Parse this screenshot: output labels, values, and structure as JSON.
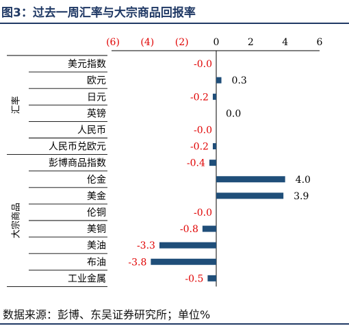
{
  "header": {
    "title": "图3：过去一周汇率与大宗商品回报率"
  },
  "footer": {
    "source": "数据来源：彭博、东吴证券研究所；单位%"
  },
  "colors": {
    "bar": "#1f4e79",
    "negative_label": "#e00000",
    "positive_label": "#000000",
    "accent": "#1f3864"
  },
  "chart_data": {
    "type": "bar",
    "orientation": "horizontal",
    "title": "",
    "xlabel": "",
    "ylabel": "",
    "xlim": [
      -6,
      6
    ],
    "xticks": [
      {
        "value": -6,
        "label": "(6)"
      },
      {
        "value": -4,
        "label": "(4)"
      },
      {
        "value": -2,
        "label": "(2)"
      },
      {
        "value": 0,
        "label": "0"
      },
      {
        "value": 2,
        "label": "2"
      },
      {
        "value": 4,
        "label": "4"
      },
      {
        "value": 6,
        "label": "6"
      }
    ],
    "groups": [
      {
        "name": "汇率",
        "count": 6
      },
      {
        "name": "大宗商品",
        "count": 8
      }
    ],
    "categories": [
      "美元指数",
      "欧元",
      "日元",
      "英镑",
      "人民币",
      "人民币兑欧元",
      "彭博商品指数",
      "伦金",
      "美金",
      "伦铜",
      "美铜",
      "美油",
      "布油",
      "工业金属"
    ],
    "values": [
      -0.0,
      0.3,
      -0.2,
      0.0,
      -0.0,
      -0.2,
      -0.4,
      4.0,
      3.9,
      -0.0,
      -0.8,
      -3.3,
      -3.8,
      -0.5
    ],
    "value_labels": [
      "-0.0",
      "0.3",
      "-0.2",
      "0.0",
      "-0.0",
      "-0.2",
      "-0.4",
      "4.0",
      "3.9",
      "-0.0",
      "-0.8",
      "-3.3",
      "-3.8",
      "-0.5"
    ],
    "grid": false,
    "legend": "none"
  }
}
